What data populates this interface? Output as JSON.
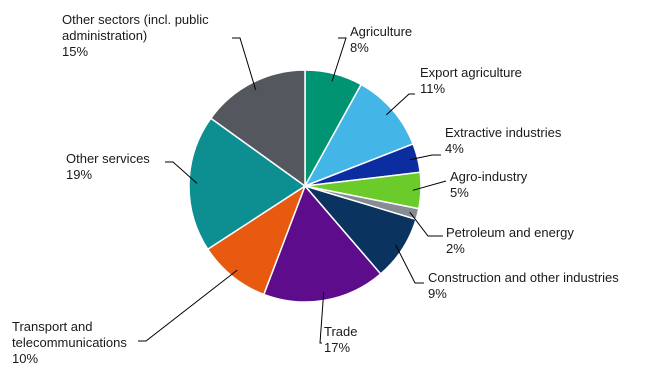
{
  "chart_data": {
    "type": "pie",
    "start_angle_deg": 0,
    "direction": "clockwise",
    "slices": [
      {
        "label": "Agriculture",
        "value": 8,
        "value_label": "8%",
        "color": "#009473"
      },
      {
        "label": "Export agriculture",
        "value": 11,
        "value_label": "11%",
        "color": "#43B5E6"
      },
      {
        "label": "Extractive industries",
        "value": 4,
        "value_label": "4%",
        "color": "#0B2DA0"
      },
      {
        "label": "Agro-industry",
        "value": 5,
        "value_label": "5%",
        "color": "#6ACB2B"
      },
      {
        "label": "Petroleum and energy",
        "value": 1.5,
        "value_label": "2%",
        "color": "#868B94"
      },
      {
        "label": "Construction and other industries",
        "value": 9,
        "value_label": "9%",
        "color": "#0B3360"
      },
      {
        "label": "Trade",
        "value": 17,
        "value_label": "17%",
        "color": "#5D0D8C"
      },
      {
        "label": "Transport and telecommunications",
        "value": 10,
        "value_label": "10%",
        "color": "#E85A10"
      },
      {
        "label": "Other services",
        "value": 19,
        "value_label": "19%",
        "color": "#0D8F92"
      },
      {
        "label": "Other sectors (incl. public administration)",
        "value": 15,
        "value_label": "15%",
        "color": "#54585E"
      }
    ]
  }
}
